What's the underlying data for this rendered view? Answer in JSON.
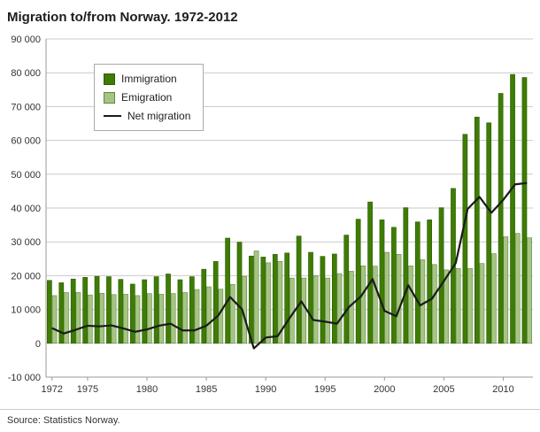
{
  "title": "Migration to/from Norway. 1972-2012",
  "source": "Source: Statistics Norway.",
  "chart_data": {
    "type": "bar",
    "title": "Migration to/from Norway. 1972-2012",
    "legend": [
      "Immigration",
      "Emigration",
      "Net migration"
    ],
    "legend_position": "top-left-inside",
    "grid": true,
    "xlabel": "",
    "ylabel": "",
    "ylim": [
      -10000,
      90000
    ],
    "years": [
      1972,
      1973,
      1974,
      1975,
      1976,
      1977,
      1978,
      1979,
      1980,
      1981,
      1982,
      1983,
      1984,
      1985,
      1986,
      1987,
      1988,
      1989,
      1990,
      1991,
      1992,
      1993,
      1994,
      1995,
      1996,
      1997,
      1998,
      1999,
      2000,
      2001,
      2002,
      2003,
      2004,
      2005,
      2006,
      2007,
      2008,
      2009,
      2010,
      2011,
      2012
    ],
    "x_ticks": [
      1972,
      1975,
      1980,
      1985,
      1990,
      1995,
      2000,
      2005,
      2010
    ],
    "y_ticks": [
      {
        "v": 90000,
        "label": "90 000"
      },
      {
        "v": 80000,
        "label": "80 000"
      },
      {
        "v": 70000,
        "label": "70 000"
      },
      {
        "v": 60000,
        "label": "60 000"
      },
      {
        "v": 50000,
        "label": "50 000"
      },
      {
        "v": 40000,
        "label": "40 000"
      },
      {
        "v": 30000,
        "label": "30 000"
      },
      {
        "v": 20000,
        "label": "20 000"
      },
      {
        "v": 10000,
        "label": "10 000"
      },
      {
        "v": 0,
        "label": "0"
      },
      {
        "v": -10000,
        "label": "-10 000"
      }
    ],
    "series": {
      "immigration": [
        18600,
        17900,
        19000,
        19500,
        19800,
        19700,
        18900,
        17500,
        18800,
        19700,
        20500,
        18800,
        19700,
        21900,
        24200,
        31100,
        29900,
        25800,
        25500,
        26300,
        26700,
        31700,
        26900,
        25700,
        26400,
        32000,
        36700,
        41800,
        36500,
        34300,
        40100,
        35900,
        36500,
        40100,
        45800,
        61800,
        66900,
        65200,
        73900,
        79500,
        78600
      ],
      "emigration": [
        14100,
        15000,
        15000,
        14300,
        14800,
        14400,
        14500,
        14100,
        14700,
        14500,
        14700,
        15000,
        15900,
        16700,
        16000,
        17400,
        19800,
        27300,
        23800,
        24200,
        19300,
        19300,
        20000,
        19300,
        20600,
        21300,
        22900,
        22800,
        26900,
        26300,
        22900,
        24700,
        23300,
        21700,
        22100,
        22100,
        23600,
        26500,
        31500,
        32500,
        31200
      ],
      "net": [
        4500,
        2900,
        4000,
        5200,
        5000,
        5300,
        4400,
        3400,
        4100,
        5200,
        5800,
        3800,
        3800,
        5200,
        8200,
        13700,
        10100,
        -1500,
        1700,
        2100,
        7400,
        12400,
        6900,
        6400,
        5800,
        10700,
        13800,
        19000,
        9600,
        8000,
        17200,
        11200,
        13200,
        18400,
        23700,
        39700,
        43300,
        38600,
        42400,
        47000,
        47400
      ]
    },
    "colors": {
      "immigration": "#3e7c04",
      "immigration_border": "#2c5a02",
      "emigration": "#a6c584",
      "emigration_border": "#5f8840",
      "net": "#1a1a1a",
      "grid": "#c9c9c9",
      "axis": "#999999",
      "text": "#333333"
    }
  }
}
